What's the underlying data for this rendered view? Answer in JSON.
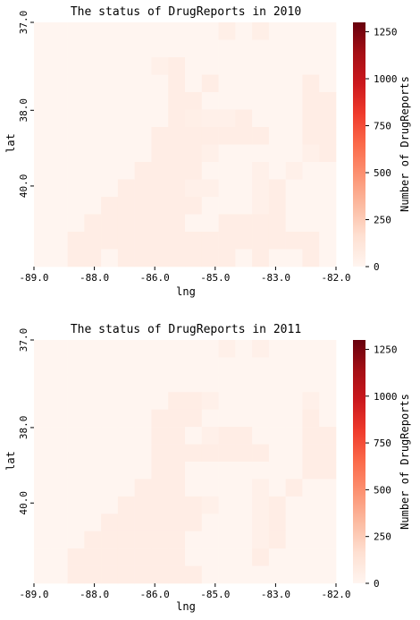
{
  "chart_data": [
    {
      "type": "heatmap",
      "title": "The status of DrugReports in 2010",
      "xlabel": "lng",
      "ylabel": "lat",
      "x_ticks": [
        "-89.0",
        "-88.0",
        "-86.0",
        "-85.0",
        "-83.0",
        "-82.0"
      ],
      "y_ticks": [
        "37.0",
        "38.0",
        "40.0"
      ],
      "colorbar_label": "Number of DrugReports",
      "colorbar_ticks": [
        0,
        250,
        500,
        750,
        1000,
        1250
      ],
      "vmin": 0,
      "vmax": 1300,
      "colormap": [
        "#fff5f0",
        "#fee0d2",
        "#fcbba1",
        "#fc9272",
        "#fb6a4a",
        "#ef3b2c",
        "#cb181d",
        "#a50f15",
        "#67000d"
      ],
      "grid_shape": [
        14,
        18
      ],
      "cells": [
        [
          0,
          0,
          0,
          0,
          0,
          0,
          0,
          0,
          0,
          0,
          0,
          50,
          0,
          50,
          0,
          0,
          0,
          0
        ],
        [
          0,
          0,
          0,
          0,
          0,
          0,
          0,
          0,
          0,
          0,
          0,
          0,
          0,
          0,
          0,
          0,
          0,
          0
        ],
        [
          0,
          0,
          0,
          0,
          0,
          0,
          0,
          40,
          60,
          0,
          0,
          0,
          0,
          0,
          0,
          0,
          0,
          0
        ],
        [
          0,
          0,
          0,
          0,
          0,
          0,
          0,
          0,
          60,
          0,
          60,
          0,
          0,
          0,
          0,
          0,
          60,
          0
        ],
        [
          0,
          0,
          0,
          0,
          0,
          0,
          0,
          0,
          60,
          60,
          0,
          0,
          0,
          0,
          0,
          0,
          60,
          60
        ],
        [
          0,
          0,
          0,
          0,
          0,
          0,
          0,
          0,
          60,
          50,
          40,
          40,
          60,
          0,
          0,
          0,
          60,
          60
        ],
        [
          0,
          0,
          0,
          0,
          0,
          0,
          0,
          60,
          60,
          60,
          60,
          60,
          60,
          60,
          0,
          0,
          60,
          60
        ],
        [
          0,
          0,
          0,
          0,
          0,
          0,
          0,
          60,
          60,
          60,
          40,
          0,
          0,
          0,
          0,
          0,
          40,
          60
        ],
        [
          0,
          0,
          0,
          0,
          0,
          0,
          60,
          60,
          60,
          60,
          0,
          0,
          0,
          40,
          0,
          40,
          0,
          0
        ],
        [
          0,
          0,
          0,
          0,
          0,
          60,
          60,
          60,
          60,
          40,
          40,
          0,
          0,
          40,
          60,
          0,
          0,
          0
        ],
        [
          0,
          0,
          0,
          0,
          60,
          60,
          60,
          60,
          60,
          60,
          0,
          0,
          0,
          40,
          60,
          0,
          0,
          0
        ],
        [
          0,
          0,
          0,
          60,
          60,
          60,
          60,
          60,
          60,
          0,
          0,
          60,
          60,
          60,
          60,
          0,
          0,
          0
        ],
        [
          0,
          0,
          60,
          60,
          60,
          60,
          60,
          60,
          60,
          60,
          60,
          60,
          60,
          60,
          60,
          60,
          60,
          0
        ],
        [
          0,
          0,
          60,
          60,
          0,
          60,
          60,
          60,
          60,
          60,
          60,
          60,
          0,
          60,
          0,
          0,
          60,
          0
        ]
      ]
    },
    {
      "type": "heatmap",
      "title": "The status of DrugReports in 2011",
      "xlabel": "lng",
      "ylabel": "lat",
      "x_ticks": [
        "-89.0",
        "-88.0",
        "-86.0",
        "-85.0",
        "-83.0",
        "-82.0"
      ],
      "y_ticks": [
        "37.0",
        "38.0",
        "40.0"
      ],
      "colorbar_label": "Number of DrugReports",
      "colorbar_ticks": [
        0,
        250,
        500,
        750,
        1000,
        1250
      ],
      "vmin": 0,
      "vmax": 1300,
      "colormap": [
        "#fff5f0",
        "#fee0d2",
        "#fcbba1",
        "#fc9272",
        "#fb6a4a",
        "#ef3b2c",
        "#cb181d",
        "#a50f15",
        "#67000d"
      ],
      "grid_shape": [
        14,
        18
      ],
      "cells": [
        [
          0,
          0,
          0,
          0,
          0,
          0,
          0,
          0,
          0,
          0,
          0,
          40,
          0,
          40,
          0,
          0,
          0,
          0
        ],
        [
          0,
          0,
          0,
          0,
          0,
          0,
          0,
          0,
          0,
          0,
          0,
          0,
          0,
          0,
          0,
          0,
          0,
          0
        ],
        [
          0,
          0,
          0,
          0,
          0,
          0,
          0,
          0,
          0,
          0,
          0,
          0,
          0,
          0,
          0,
          0,
          0,
          0
        ],
        [
          0,
          0,
          0,
          0,
          0,
          0,
          0,
          0,
          60,
          60,
          40,
          0,
          0,
          0,
          0,
          0,
          40,
          0
        ],
        [
          0,
          0,
          0,
          0,
          0,
          0,
          0,
          60,
          60,
          60,
          0,
          0,
          0,
          0,
          0,
          0,
          60,
          0
        ],
        [
          0,
          0,
          0,
          0,
          0,
          0,
          0,
          60,
          60,
          0,
          40,
          60,
          60,
          0,
          0,
          0,
          60,
          60
        ],
        [
          0,
          0,
          0,
          0,
          0,
          0,
          0,
          60,
          60,
          60,
          60,
          60,
          60,
          60,
          0,
          0,
          60,
          60
        ],
        [
          0,
          0,
          0,
          0,
          0,
          0,
          0,
          60,
          60,
          0,
          0,
          0,
          0,
          0,
          0,
          0,
          60,
          60
        ],
        [
          0,
          0,
          0,
          0,
          0,
          0,
          60,
          60,
          60,
          0,
          0,
          0,
          0,
          40,
          0,
          60,
          0,
          0
        ],
        [
          0,
          0,
          0,
          0,
          0,
          60,
          60,
          60,
          60,
          60,
          40,
          0,
          0,
          40,
          60,
          0,
          0,
          0
        ],
        [
          0,
          0,
          0,
          0,
          60,
          60,
          60,
          60,
          60,
          60,
          0,
          0,
          0,
          40,
          60,
          0,
          0,
          0
        ],
        [
          0,
          0,
          0,
          60,
          60,
          60,
          60,
          60,
          60,
          0,
          0,
          0,
          0,
          40,
          60,
          0,
          0,
          0
        ],
        [
          0,
          0,
          60,
          60,
          60,
          60,
          60,
          60,
          60,
          0,
          0,
          0,
          0,
          60,
          0,
          0,
          0,
          0
        ],
        [
          0,
          0,
          60,
          60,
          60,
          60,
          60,
          60,
          60,
          60,
          0,
          0,
          0,
          0,
          0,
          0,
          0,
          0
        ]
      ]
    }
  ]
}
